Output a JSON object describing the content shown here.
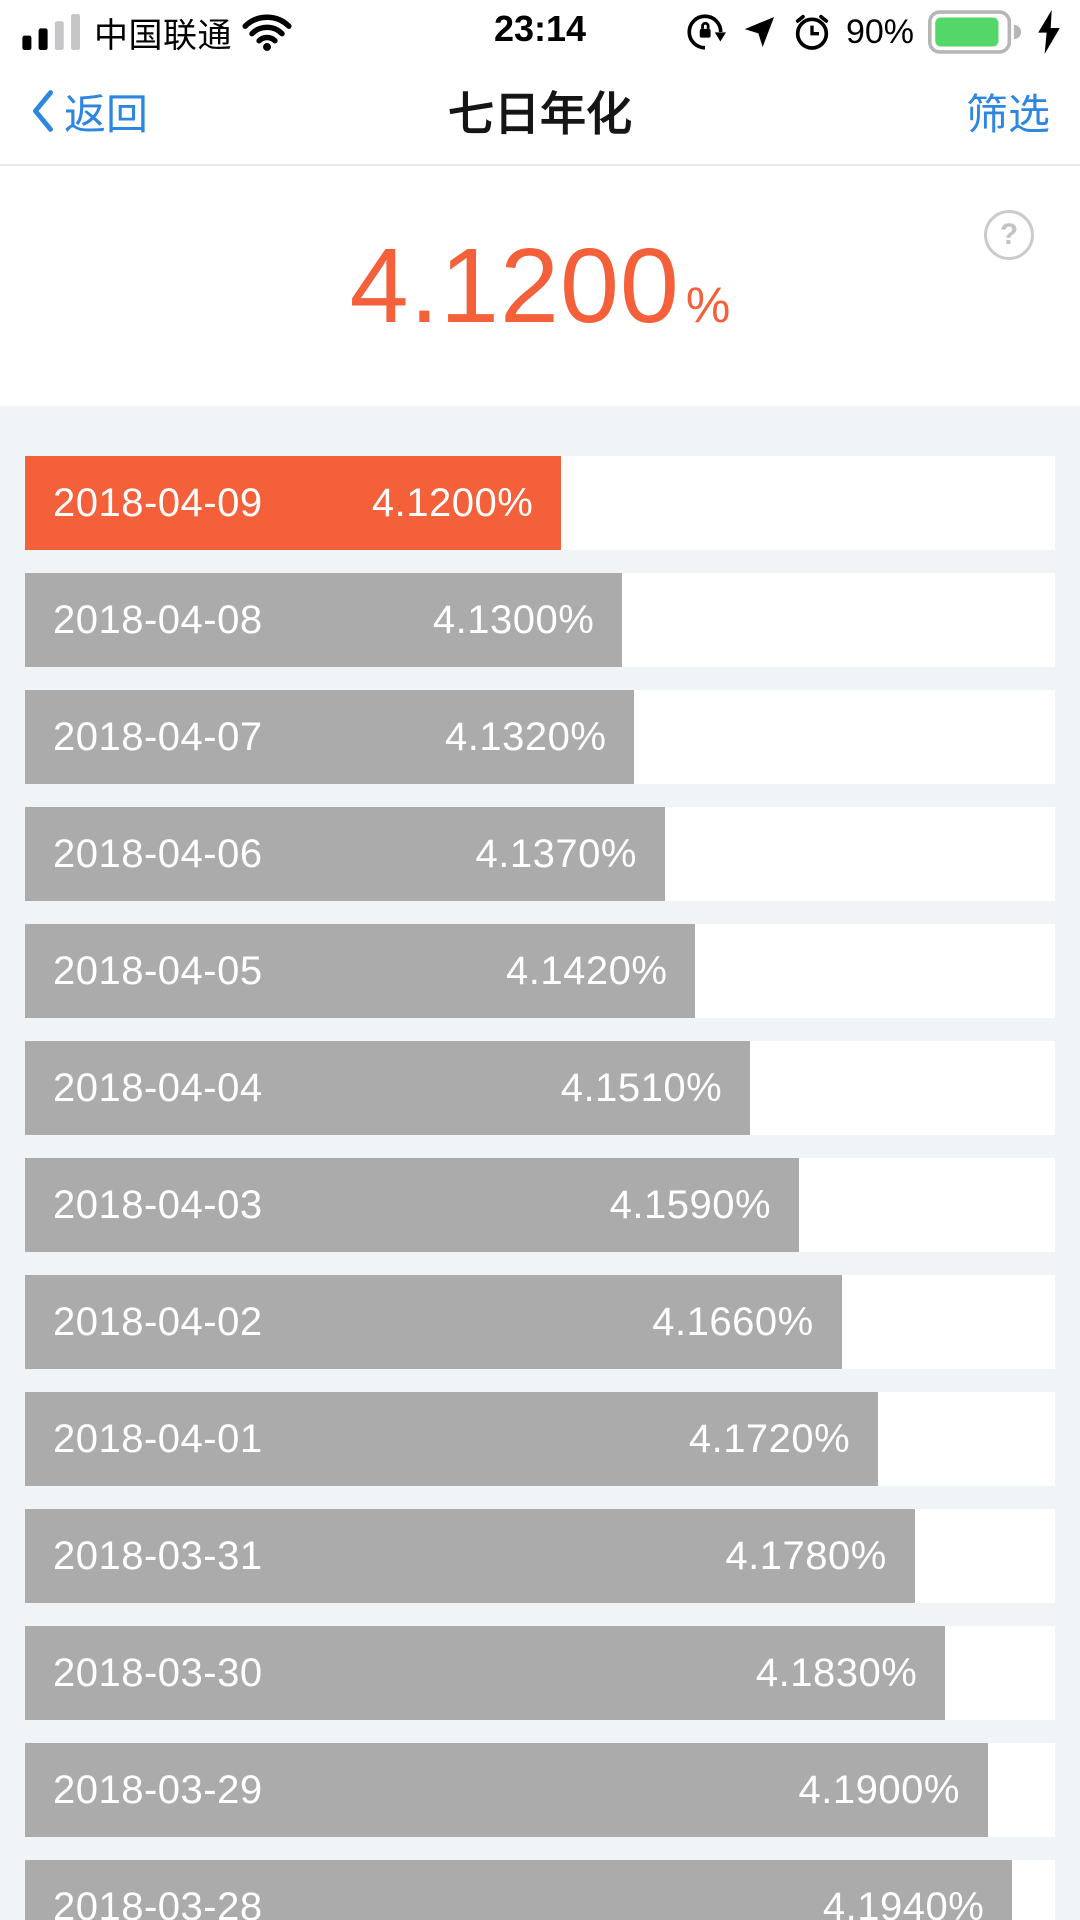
{
  "status_bar": {
    "carrier": "中国联通",
    "time": "23:14",
    "battery_percent": "90%"
  },
  "nav_bar": {
    "back_label": "返回",
    "title": "七日年化",
    "filter_label": "筛选"
  },
  "summary": {
    "value": "4.1200",
    "unit": "%",
    "help_glyph": "?"
  },
  "colors": {
    "accent_orange": "#f4603a",
    "bar_gray": "#ababab",
    "link_blue": "#2d86e0",
    "chart_background": "#f0f4f7",
    "battery_green": "#53d769",
    "track_white": "#ffffff"
  },
  "chart_data": {
    "type": "bar",
    "orientation": "horizontal",
    "title": "七日年化",
    "categories": [
      "2018-04-09",
      "2018-04-08",
      "2018-04-07",
      "2018-04-06",
      "2018-04-05",
      "2018-04-04",
      "2018-04-03",
      "2018-04-02",
      "2018-04-01",
      "2018-03-31",
      "2018-03-30",
      "2018-03-29",
      "2018-03-28"
    ],
    "values": [
      4.12,
      4.13,
      4.132,
      4.137,
      4.142,
      4.151,
      4.159,
      4.166,
      4.172,
      4.178,
      4.183,
      4.19,
      4.194
    ],
    "value_labels": [
      "4.1200%",
      "4.1300%",
      "4.1320%",
      "4.1370%",
      "4.1420%",
      "4.1510%",
      "4.1590%",
      "4.1660%",
      "4.1720%",
      "4.1780%",
      "4.1830%",
      "4.1900%",
      "4.1940%"
    ],
    "unit": "%",
    "highlight_index": 0,
    "xlim": [
      4.032,
      4.201
    ],
    "grid": false,
    "legend": false
  }
}
